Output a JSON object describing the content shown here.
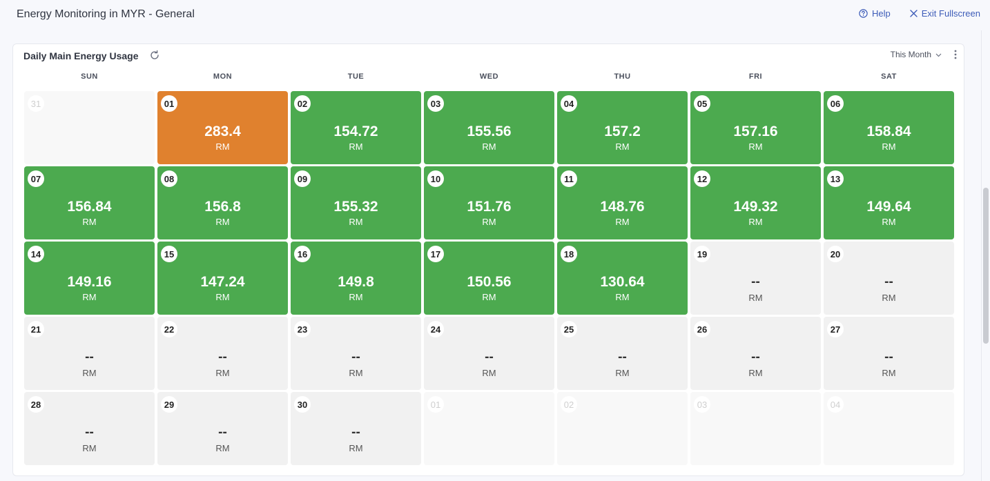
{
  "header": {
    "title": "Energy Monitoring in MYR - General",
    "help_label": "Help",
    "exit_label": "Exit Fullscreen"
  },
  "widget": {
    "title": "Daily Main Energy Usage",
    "period": "This Month",
    "icons": [
      "refresh-icon",
      "chevron-down-icon",
      "kebab-menu-icon"
    ]
  },
  "calendar": {
    "weekdays": [
      "SUN",
      "MON",
      "TUE",
      "WED",
      "THU",
      "FRI",
      "SAT"
    ],
    "unit": "RM",
    "colors": {
      "green": "#4caa4f",
      "orange": "#e0812e",
      "no_data": "#f1f1f1",
      "out_of_month": "#f8f8f8"
    },
    "cells": [
      {
        "day": "31",
        "status": "out"
      },
      {
        "day": "01",
        "value": "283.4",
        "status": "orange"
      },
      {
        "day": "02",
        "value": "154.72",
        "status": "green"
      },
      {
        "day": "03",
        "value": "155.56",
        "status": "green"
      },
      {
        "day": "04",
        "value": "157.2",
        "status": "green"
      },
      {
        "day": "05",
        "value": "157.16",
        "status": "green"
      },
      {
        "day": "06",
        "value": "158.84",
        "status": "green"
      },
      {
        "day": "07",
        "value": "156.84",
        "status": "green"
      },
      {
        "day": "08",
        "value": "156.8",
        "status": "green"
      },
      {
        "day": "09",
        "value": "155.32",
        "status": "green"
      },
      {
        "day": "10",
        "value": "151.76",
        "status": "green"
      },
      {
        "day": "11",
        "value": "148.76",
        "status": "green"
      },
      {
        "day": "12",
        "value": "149.32",
        "status": "green"
      },
      {
        "day": "13",
        "value": "149.64",
        "status": "green"
      },
      {
        "day": "14",
        "value": "149.16",
        "status": "green"
      },
      {
        "day": "15",
        "value": "147.24",
        "status": "green"
      },
      {
        "day": "16",
        "value": "149.8",
        "status": "green"
      },
      {
        "day": "17",
        "value": "150.56",
        "status": "green"
      },
      {
        "day": "18",
        "value": "130.64",
        "status": "green"
      },
      {
        "day": "19",
        "value": "--",
        "status": "nodata"
      },
      {
        "day": "20",
        "value": "--",
        "status": "nodata"
      },
      {
        "day": "21",
        "value": "--",
        "status": "nodata"
      },
      {
        "day": "22",
        "value": "--",
        "status": "nodata"
      },
      {
        "day": "23",
        "value": "--",
        "status": "nodata"
      },
      {
        "day": "24",
        "value": "--",
        "status": "nodata"
      },
      {
        "day": "25",
        "value": "--",
        "status": "nodata"
      },
      {
        "day": "26",
        "value": "--",
        "status": "nodata"
      },
      {
        "day": "27",
        "value": "--",
        "status": "nodata"
      },
      {
        "day": "28",
        "value": "--",
        "status": "nodata"
      },
      {
        "day": "29",
        "value": "--",
        "status": "nodata"
      },
      {
        "day": "30",
        "value": "--",
        "status": "nodata"
      },
      {
        "day": "01",
        "status": "out"
      },
      {
        "day": "02",
        "status": "out"
      },
      {
        "day": "03",
        "status": "out"
      },
      {
        "day": "04",
        "status": "out"
      }
    ]
  }
}
